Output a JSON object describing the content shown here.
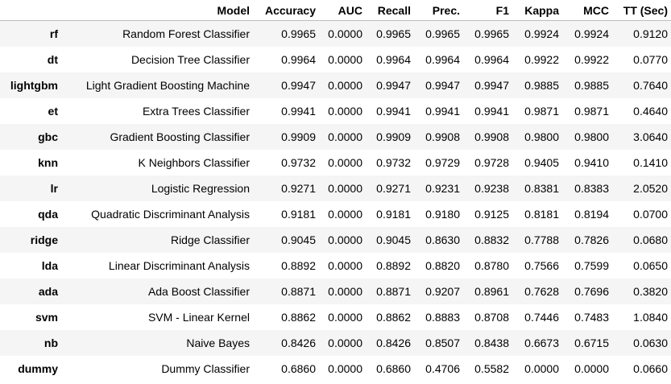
{
  "table": {
    "columns": [
      "Model",
      "Accuracy",
      "AUC",
      "Recall",
      "Prec.",
      "F1",
      "Kappa",
      "MCC",
      "TT (Sec)"
    ],
    "rows": [
      {
        "index": "rf",
        "model": "Random Forest Classifier",
        "accuracy": "0.9965",
        "auc": "0.0000",
        "recall": "0.9965",
        "prec": "0.9965",
        "f1": "0.9965",
        "kappa": "0.9924",
        "mcc": "0.9924",
        "tt": "0.9120"
      },
      {
        "index": "dt",
        "model": "Decision Tree Classifier",
        "accuracy": "0.9964",
        "auc": "0.0000",
        "recall": "0.9964",
        "prec": "0.9964",
        "f1": "0.9964",
        "kappa": "0.9922",
        "mcc": "0.9922",
        "tt": "0.0770"
      },
      {
        "index": "lightgbm",
        "model": "Light Gradient Boosting Machine",
        "accuracy": "0.9947",
        "auc": "0.0000",
        "recall": "0.9947",
        "prec": "0.9947",
        "f1": "0.9947",
        "kappa": "0.9885",
        "mcc": "0.9885",
        "tt": "0.7640"
      },
      {
        "index": "et",
        "model": "Extra Trees Classifier",
        "accuracy": "0.9941",
        "auc": "0.0000",
        "recall": "0.9941",
        "prec": "0.9941",
        "f1": "0.9941",
        "kappa": "0.9871",
        "mcc": "0.9871",
        "tt": "0.4640"
      },
      {
        "index": "gbc",
        "model": "Gradient Boosting Classifier",
        "accuracy": "0.9909",
        "auc": "0.0000",
        "recall": "0.9909",
        "prec": "0.9908",
        "f1": "0.9908",
        "kappa": "0.9800",
        "mcc": "0.9800",
        "tt": "3.0640"
      },
      {
        "index": "knn",
        "model": "K Neighbors Classifier",
        "accuracy": "0.9732",
        "auc": "0.0000",
        "recall": "0.9732",
        "prec": "0.9729",
        "f1": "0.9728",
        "kappa": "0.9405",
        "mcc": "0.9410",
        "tt": "0.1410"
      },
      {
        "index": "lr",
        "model": "Logistic Regression",
        "accuracy": "0.9271",
        "auc": "0.0000",
        "recall": "0.9271",
        "prec": "0.9231",
        "f1": "0.9238",
        "kappa": "0.8381",
        "mcc": "0.8383",
        "tt": "2.0520"
      },
      {
        "index": "qda",
        "model": "Quadratic Discriminant Analysis",
        "accuracy": "0.9181",
        "auc": "0.0000",
        "recall": "0.9181",
        "prec": "0.9180",
        "f1": "0.9125",
        "kappa": "0.8181",
        "mcc": "0.8194",
        "tt": "0.0700"
      },
      {
        "index": "ridge",
        "model": "Ridge Classifier",
        "accuracy": "0.9045",
        "auc": "0.0000",
        "recall": "0.9045",
        "prec": "0.8630",
        "f1": "0.8832",
        "kappa": "0.7788",
        "mcc": "0.7826",
        "tt": "0.0680"
      },
      {
        "index": "lda",
        "model": "Linear Discriminant Analysis",
        "accuracy": "0.8892",
        "auc": "0.0000",
        "recall": "0.8892",
        "prec": "0.8820",
        "f1": "0.8780",
        "kappa": "0.7566",
        "mcc": "0.7599",
        "tt": "0.0650"
      },
      {
        "index": "ada",
        "model": "Ada Boost Classifier",
        "accuracy": "0.8871",
        "auc": "0.0000",
        "recall": "0.8871",
        "prec": "0.9207",
        "f1": "0.8961",
        "kappa": "0.7628",
        "mcc": "0.7696",
        "tt": "0.3820"
      },
      {
        "index": "svm",
        "model": "SVM - Linear Kernel",
        "accuracy": "0.8862",
        "auc": "0.0000",
        "recall": "0.8862",
        "prec": "0.8883",
        "f1": "0.8708",
        "kappa": "0.7446",
        "mcc": "0.7483",
        "tt": "1.0840"
      },
      {
        "index": "nb",
        "model": "Naive Bayes",
        "accuracy": "0.8426",
        "auc": "0.0000",
        "recall": "0.8426",
        "prec": "0.8507",
        "f1": "0.8438",
        "kappa": "0.6673",
        "mcc": "0.6715",
        "tt": "0.0630"
      },
      {
        "index": "dummy",
        "model": "Dummy Classifier",
        "accuracy": "0.6860",
        "auc": "0.0000",
        "recall": "0.6860",
        "prec": "0.4706",
        "f1": "0.5582",
        "kappa": "0.0000",
        "mcc": "0.0000",
        "tt": "0.0660"
      }
    ]
  }
}
